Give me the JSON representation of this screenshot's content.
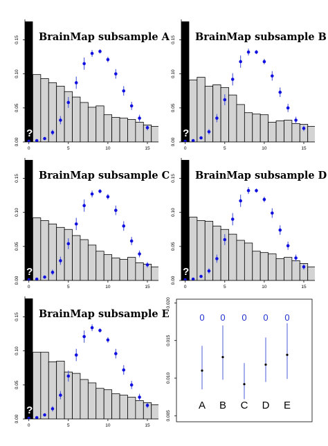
{
  "colors": {
    "bar_fill": "#d3d3d3",
    "bar_stroke": "#000000",
    "point": "#1010e0",
    "errorbar": "#4b59d8",
    "axis": "#000000",
    "black_band": "#000000",
    "zero_label": "#1f2fd0"
  },
  "chart_data": [
    {
      "type": "bar",
      "title": "BrainMap subsample A",
      "question_mark": "?",
      "x": [
        0,
        1,
        2,
        3,
        4,
        5,
        6,
        7,
        8,
        9,
        10,
        11,
        12,
        13,
        14,
        15,
        16
      ],
      "bars": [
        0.177,
        0.099,
        0.093,
        0.087,
        0.082,
        0.074,
        0.066,
        0.058,
        0.051,
        0.053,
        0.04,
        0.036,
        0.035,
        0.033,
        0.029,
        0.025,
        0.023
      ],
      "points": [
        0.001,
        0.002,
        0.005,
        0.014,
        0.032,
        0.058,
        0.087,
        0.115,
        0.13,
        0.133,
        0.121,
        0.1,
        0.075,
        0.053,
        0.035,
        0.021,
        null
      ],
      "errors": [
        0.001,
        0.001,
        0.002,
        0.004,
        0.006,
        0.008,
        0.009,
        0.009,
        0.005,
        0.003,
        0.004,
        0.007,
        0.007,
        0.006,
        0.005,
        0.004,
        null
      ],
      "xlim": [
        -0.5,
        16.4
      ],
      "ylim": [
        0,
        0.18
      ],
      "xticks": [
        "0",
        "5",
        "10",
        "15"
      ],
      "yticks": [
        "0.00",
        "0.05",
        "0.10",
        "0.15"
      ]
    },
    {
      "type": "bar",
      "title": "BrainMap subsample B",
      "question_mark": "?",
      "x": [
        0,
        1,
        2,
        3,
        4,
        5,
        6,
        7,
        8,
        9,
        10,
        11,
        12,
        13,
        14,
        15,
        16
      ],
      "bars": [
        0.177,
        0.091,
        0.095,
        0.082,
        0.084,
        0.08,
        0.069,
        0.055,
        0.043,
        0.041,
        0.04,
        0.029,
        0.031,
        0.032,
        0.027,
        0.026,
        0.023
      ],
      "points": [
        0.001,
        0.002,
        0.006,
        0.015,
        0.035,
        0.062,
        0.092,
        0.118,
        0.132,
        0.132,
        0.118,
        0.097,
        0.073,
        0.05,
        0.032,
        0.02,
        null
      ],
      "errors": [
        0.001,
        0.001,
        0.002,
        0.004,
        0.006,
        0.008,
        0.009,
        0.009,
        0.005,
        0.003,
        0.004,
        0.007,
        0.007,
        0.006,
        0.005,
        0.004,
        null
      ],
      "xlim": [
        -0.5,
        16.4
      ],
      "ylim": [
        0,
        0.18
      ],
      "xticks": [
        "0",
        "5",
        "10",
        "15"
      ],
      "yticks": [
        "0.00",
        "0.05",
        "0.10",
        "0.15"
      ]
    },
    {
      "type": "bar",
      "title": "BrainMap subsample C",
      "question_mark": "?",
      "x": [
        0,
        1,
        2,
        3,
        4,
        5,
        6,
        7,
        8,
        9,
        10,
        11,
        12,
        13,
        14,
        15,
        16
      ],
      "bars": [
        0.177,
        0.092,
        0.088,
        0.083,
        0.078,
        0.075,
        0.066,
        0.06,
        0.052,
        0.043,
        0.038,
        0.033,
        0.031,
        0.034,
        0.026,
        0.024,
        0.02
      ],
      "points": [
        0.001,
        0.002,
        0.005,
        0.012,
        0.029,
        0.054,
        0.083,
        0.11,
        0.127,
        0.131,
        0.123,
        0.103,
        0.08,
        0.058,
        0.039,
        0.023,
        null
      ],
      "errors": [
        0.001,
        0.001,
        0.002,
        0.004,
        0.006,
        0.008,
        0.009,
        0.009,
        0.005,
        0.003,
        0.004,
        0.007,
        0.007,
        0.006,
        0.005,
        0.004,
        null
      ],
      "xlim": [
        -0.5,
        16.4
      ],
      "ylim": [
        0,
        0.18
      ],
      "xticks": [
        "0",
        "5",
        "10",
        "15"
      ],
      "yticks": [
        "0.00",
        "0.05",
        "0.10",
        "0.15"
      ]
    },
    {
      "type": "bar",
      "title": "BrainMap subsample D",
      "question_mark": "?",
      "x": [
        0,
        1,
        2,
        3,
        4,
        5,
        6,
        7,
        8,
        9,
        10,
        11,
        12,
        13,
        14,
        15,
        16
      ],
      "bars": [
        0.177,
        0.093,
        0.088,
        0.087,
        0.08,
        0.075,
        0.068,
        0.059,
        0.055,
        0.043,
        0.041,
        0.039,
        0.032,
        0.034,
        0.029,
        0.025,
        0.02
      ],
      "points": [
        0.001,
        0.002,
        0.006,
        0.014,
        0.032,
        0.06,
        0.09,
        0.117,
        0.132,
        0.132,
        0.119,
        0.099,
        0.074,
        0.051,
        0.033,
        0.02,
        null
      ],
      "errors": [
        0.001,
        0.001,
        0.002,
        0.004,
        0.006,
        0.008,
        0.009,
        0.009,
        0.005,
        0.003,
        0.004,
        0.007,
        0.007,
        0.006,
        0.005,
        0.004,
        null
      ],
      "xlim": [
        -0.5,
        16.4
      ],
      "ylim": [
        0,
        0.18
      ],
      "xticks": [
        "0",
        "5",
        "10",
        "15"
      ],
      "yticks": [
        "0.00",
        "0.05",
        "0.10",
        "0.15"
      ]
    },
    {
      "type": "bar",
      "title": "BrainMap subsample E",
      "question_mark": "?",
      "x": [
        0,
        1,
        2,
        3,
        4,
        5,
        6,
        7,
        8,
        9,
        10,
        11,
        12,
        13,
        14,
        15,
        16
      ],
      "bars": [
        0.177,
        0.098,
        0.098,
        0.084,
        0.085,
        0.069,
        0.067,
        0.058,
        0.053,
        0.045,
        0.043,
        0.037,
        0.035,
        0.032,
        0.027,
        0.024,
        0.021
      ],
      "points": [
        0.001,
        0.002,
        0.006,
        0.015,
        0.035,
        0.063,
        0.094,
        0.121,
        0.134,
        0.13,
        0.116,
        0.096,
        0.072,
        0.05,
        0.032,
        0.02,
        null
      ],
      "errors": [
        0.001,
        0.001,
        0.002,
        0.004,
        0.006,
        0.008,
        0.009,
        0.009,
        0.005,
        0.003,
        0.004,
        0.007,
        0.007,
        0.006,
        0.005,
        0.004,
        null
      ],
      "xlim": [
        -0.5,
        16.4
      ],
      "ylim": [
        0,
        0.18
      ],
      "xticks": [
        "0",
        "5",
        "10",
        "15"
      ],
      "yticks": [
        "0.00",
        "0.05",
        "0.10",
        "0.15"
      ]
    },
    {
      "type": "scatter",
      "categories": [
        "A",
        "B",
        "C",
        "D",
        "E"
      ],
      "values": [
        0.011,
        0.0128,
        0.0092,
        0.0118,
        0.0131
      ],
      "lower": [
        0.0085,
        0.0098,
        0.0072,
        0.0095,
        0.0099
      ],
      "upper": [
        0.0143,
        0.017,
        0.012,
        0.0154,
        0.0173
      ],
      "zero_labels": [
        "0",
        "0",
        "0",
        "0",
        "0"
      ],
      "ylim": [
        0.0042,
        0.0205
      ],
      "yticks": [
        "0.005",
        "0.010",
        "0.015",
        "0.020"
      ]
    }
  ]
}
